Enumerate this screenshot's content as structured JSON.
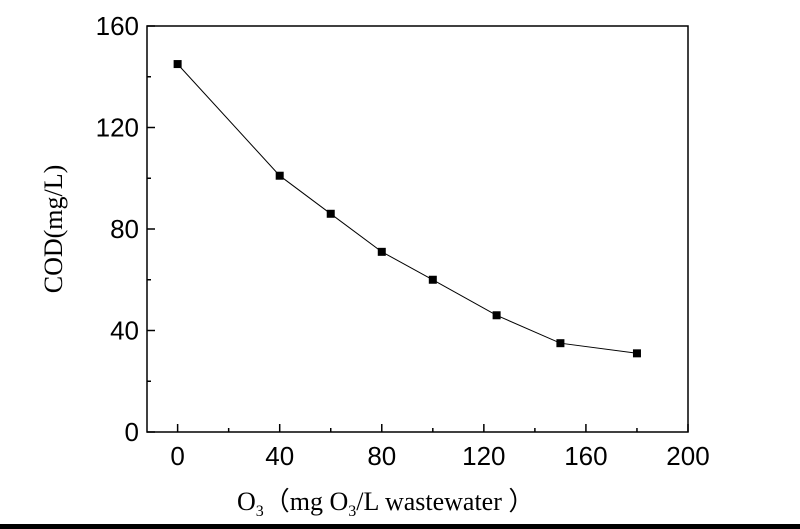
{
  "chart_data": {
    "type": "line",
    "marker": "square",
    "x": [
      0,
      40,
      60,
      80,
      100,
      125,
      150,
      180
    ],
    "series": [
      {
        "values": [
          145,
          101,
          86,
          71,
          60,
          46,
          35,
          31
        ]
      }
    ],
    "xlabel": {
      "prefix": "O",
      "prefix_sub": "3",
      "mid": "（mg O",
      "mid_sub": "3",
      "suffix": "/L wastewater ）"
    },
    "ylabel": "COD(mg/L)",
    "xlim": [
      -12,
      200
    ],
    "ylim": [
      0,
      160
    ],
    "xticks": [
      "0",
      "40",
      "80",
      "120",
      "160",
      "200"
    ],
    "xtick_values": [
      0,
      40,
      80,
      120,
      160,
      200
    ],
    "yticks": [
      "0",
      "40",
      "80",
      "120",
      "160"
    ],
    "ytick_values": [
      0,
      40,
      80,
      120,
      160
    ],
    "grid": false,
    "line_color": "#000000",
    "marker_color": "#000000"
  }
}
